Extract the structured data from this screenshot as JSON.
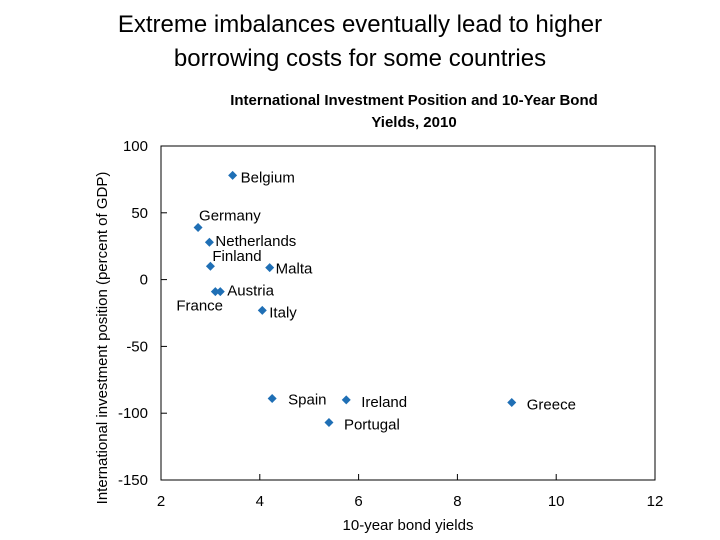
{
  "slide": {
    "title_line1": "Extreme imbalances eventually lead to higher",
    "title_line2": "borrowing costs for some countries"
  },
  "chart_data": {
    "type": "scatter",
    "title_line1": "International Investment Position and 10-Year Bond",
    "title_line2": "Yields, 2010",
    "xlabel": "10-year bond yields",
    "ylabel": "International investment position (percent of GDP)",
    "xlim": [
      2,
      12
    ],
    "ylim": [
      -150,
      100
    ],
    "xticks": [
      2,
      4,
      6,
      8,
      10,
      12
    ],
    "yticks": [
      100,
      50,
      0,
      -50,
      -100,
      -150
    ],
    "grid": false,
    "marker_color": "#1F6FB5",
    "points": [
      {
        "label": "Belgium",
        "x": 3.45,
        "y": 78
      },
      {
        "label": "Germany",
        "x": 2.75,
        "y": 39
      },
      {
        "label": "Netherlands",
        "x": 2.98,
        "y": 28
      },
      {
        "label": "Finland",
        "x": 3.0,
        "y": 10
      },
      {
        "label": "Malta",
        "x": 4.2,
        "y": 9
      },
      {
        "label": "Austria",
        "x": 3.2,
        "y": -9
      },
      {
        "label": "France",
        "x": 3.1,
        "y": -9
      },
      {
        "label": "Italy",
        "x": 4.05,
        "y": -23
      },
      {
        "label": "Spain",
        "x": 4.25,
        "y": -89
      },
      {
        "label": "Ireland",
        "x": 5.75,
        "y": -90
      },
      {
        "label": "Greece",
        "x": 9.1,
        "y": -92
      },
      {
        "label": "Portugal",
        "x": 5.4,
        "y": -107
      }
    ]
  }
}
